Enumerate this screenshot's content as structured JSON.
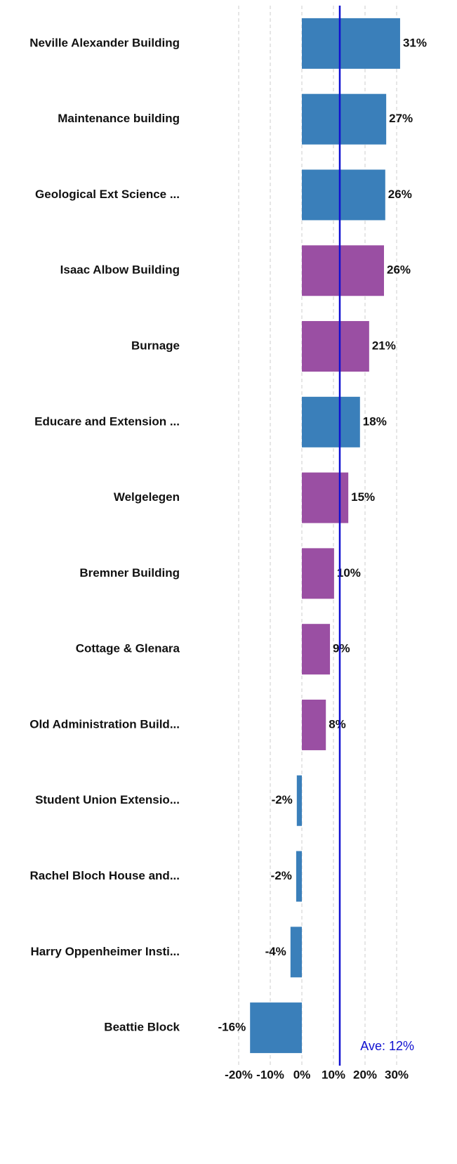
{
  "chart_data": {
    "type": "bar",
    "orientation": "horizontal",
    "categories": [
      "Neville Alexander Building",
      "Maintenance building",
      "Geological Ext Science ...",
      "Isaac Albow Building",
      "Burnage",
      "Educare and Extension ...",
      "Welgelegen",
      "Bremner Building",
      "Cottage & Glenara",
      "Old Administration Build...",
      "Student Union Extensio...",
      "Rachel Bloch House and...",
      "Harry Oppenheimer Insti...",
      "Beattie Block"
    ],
    "values": [
      31.1,
      26.7,
      26.4,
      26,
      21.3,
      18.4,
      14.7,
      10.2,
      8.9,
      7.6,
      -1.6,
      -1.8,
      -3.6,
      -16.4
    ],
    "value_labels": [
      "31%",
      "27%",
      "26%",
      "26%",
      "21%",
      "18%",
      "15%",
      "10%",
      "9%",
      "8%",
      "-2%",
      "-2%",
      "-4%",
      "-16%"
    ],
    "colors": [
      "#3a7fba",
      "#3a7fba",
      "#3a7fba",
      "#9a4fa3",
      "#9a4fa3",
      "#3a7fba",
      "#9a4fa3",
      "#9a4fa3",
      "#9a4fa3",
      "#9a4fa3",
      "#3a7fba",
      "#3a7fba",
      "#3a7fba",
      "#3a7fba"
    ],
    "xlim": [
      -20,
      33
    ],
    "xticks": [
      {
        "value": -20,
        "label": "-20%"
      },
      {
        "value": -10,
        "label": "-10%"
      },
      {
        "value": 0,
        "label": "0%"
      },
      {
        "value": 10,
        "label": "10%"
      },
      {
        "value": 20,
        "label": "20%"
      },
      {
        "value": 30,
        "label": "30%"
      }
    ],
    "grid": true,
    "average": {
      "value": 12,
      "label": "Ave: 12%",
      "color": "#1010d0"
    }
  }
}
